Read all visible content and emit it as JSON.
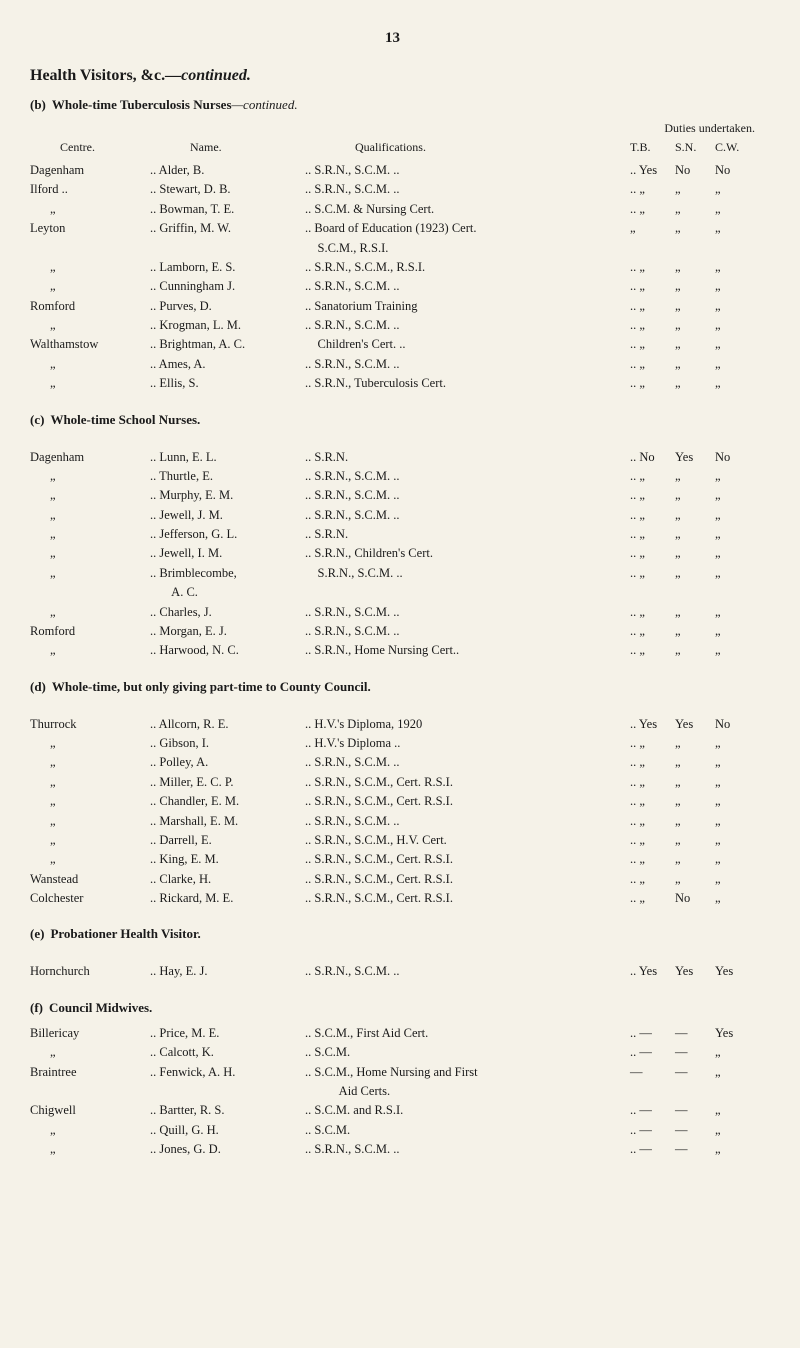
{
  "page_number": "13",
  "main_heading": "Health Visitors, &c.",
  "main_heading_suffix": "—continued.",
  "section_b": {
    "letter": "(b)",
    "title": "Whole-time Tuberculosis Nurses",
    "title_suffix": "—continued.",
    "legend": "Duties undertaken.",
    "headers": {
      "centre": "Centre.",
      "name": "Name.",
      "qual": "Qualifications.",
      "tb": "T.B.",
      "sn": "S.N.",
      "cw": "C.W."
    },
    "rows": [
      {
        "centre": "Dagenham",
        "name": ".. Alder, B.",
        "qual": ".. S.R.N., S.C.M. ..",
        "tb": ".. Yes",
        "sn": "No",
        "cw": "No"
      },
      {
        "centre": "Ilford ..",
        "name": ".. Stewart, D. B.",
        "qual": ".. S.R.N., S.C.M. ..",
        "tb": ".. „",
        "sn": "„",
        "cw": "„"
      },
      {
        "centre": "„",
        "name": ".. Bowman, T. E.",
        "qual": ".. S.C.M. & Nursing Cert.",
        "tb": ".. „",
        "sn": "„",
        "cw": "„"
      },
      {
        "centre": "Leyton",
        "name": ".. Griffin, M. W.",
        "qual": ".. Board of Education (1923) Cert.",
        "tb": "„",
        "sn": "„",
        "cw": "„"
      },
      {
        "centre": "",
        "name": "",
        "qual": "    S.C.M., R.S.I.",
        "tb": "",
        "sn": "",
        "cw": ""
      },
      {
        "centre": "„",
        "name": ".. Lamborn, E. S.",
        "qual": ".. S.R.N., S.C.M., R.S.I.",
        "tb": ".. „",
        "sn": "„",
        "cw": "„"
      },
      {
        "centre": "„",
        "name": ".. Cunningham J.",
        "qual": ".. S.R.N., S.C.M. ..",
        "tb": ".. „",
        "sn": "„",
        "cw": "„"
      },
      {
        "centre": "Romford",
        "name": ".. Purves, D.",
        "qual": ".. Sanatorium Training",
        "tb": ".. „",
        "sn": "„",
        "cw": "„"
      },
      {
        "centre": "„",
        "name": ".. Krogman, L. M.",
        "qual": ".. S.R.N., S.C.M. ..",
        "tb": ".. „",
        "sn": "„",
        "cw": "„"
      },
      {
        "centre": "Walthamstow",
        "name": ".. Brightman, A. C.",
        "qual": "    Children's Cert. ..",
        "tb": ".. „",
        "sn": "„",
        "cw": "„"
      },
      {
        "centre": "„",
        "name": ".. Ames, A.",
        "qual": ".. S.R.N., S.C.M. ..",
        "tb": ".. „",
        "sn": "„",
        "cw": "„"
      },
      {
        "centre": "„",
        "name": ".. Ellis, S.",
        "qual": ".. S.R.N., Tuberculosis Cert.",
        "tb": ".. „",
        "sn": "„",
        "cw": "„"
      }
    ]
  },
  "section_c": {
    "letter": "(c)",
    "title": "Whole-time School Nurses.",
    "rows": [
      {
        "centre": "Dagenham",
        "name": ".. Lunn, E. L.",
        "qual": ".. S.R.N.",
        "tb": ".. No",
        "sn": "Yes",
        "cw": "No"
      },
      {
        "centre": "„",
        "name": ".. Thurtle, E.",
        "qual": ".. S.R.N., S.C.M. ..",
        "tb": ".. „",
        "sn": "„",
        "cw": "„"
      },
      {
        "centre": "„",
        "name": ".. Murphy, E. M.",
        "qual": ".. S.R.N., S.C.M. ..",
        "tb": ".. „",
        "sn": "„",
        "cw": "„"
      },
      {
        "centre": "„",
        "name": ".. Jewell, J. M.",
        "qual": ".. S.R.N., S.C.M. ..",
        "tb": ".. „",
        "sn": "„",
        "cw": "„"
      },
      {
        "centre": "„",
        "name": ".. Jefferson, G. L.",
        "qual": ".. S.R.N.",
        "tb": ".. „",
        "sn": "„",
        "cw": "„"
      },
      {
        "centre": "„",
        "name": ".. Jewell, I. M.",
        "qual": ".. S.R.N., Children's Cert.",
        "tb": ".. „",
        "sn": "„",
        "cw": "„"
      },
      {
        "centre": "„",
        "name": ".. Brimblecombe,",
        "qual": "    S.R.N., S.C.M. ..",
        "tb": ".. „",
        "sn": "„",
        "cw": "„"
      },
      {
        "centre": "",
        "name": "       A. C.",
        "qual": "",
        "tb": "",
        "sn": "",
        "cw": ""
      },
      {
        "centre": "„",
        "name": ".. Charles, J.",
        "qual": ".. S.R.N., S.C.M. ..",
        "tb": ".. „",
        "sn": "„",
        "cw": "„"
      },
      {
        "centre": "Romford",
        "name": ".. Morgan, E. J.",
        "qual": ".. S.R.N., S.C.M. ..",
        "tb": ".. „",
        "sn": "„",
        "cw": "„"
      },
      {
        "centre": "„",
        "name": ".. Harwood, N. C.",
        "qual": ".. S.R.N., Home Nursing Cert..",
        "tb": ".. „",
        "sn": "„",
        "cw": "„"
      }
    ]
  },
  "section_d": {
    "letter": "(d)",
    "title": "Whole-time, but only giving part-time to County Council.",
    "rows": [
      {
        "centre": "Thurrock",
        "name": ".. Allcorn, R. E.",
        "qual": ".. H.V.'s Diploma, 1920",
        "tb": ".. Yes",
        "sn": "Yes",
        "cw": "No"
      },
      {
        "centre": "„",
        "name": ".. Gibson, I.",
        "qual": ".. H.V.'s Diploma ..",
        "tb": ".. „",
        "sn": "„",
        "cw": "„"
      },
      {
        "centre": "„",
        "name": ".. Polley, A.",
        "qual": ".. S.R.N., S.C.M. ..",
        "tb": ".. „",
        "sn": "„",
        "cw": "„"
      },
      {
        "centre": "„",
        "name": ".. Miller, E. C. P.",
        "qual": ".. S.R.N., S.C.M., Cert. R.S.I.",
        "tb": ".. „",
        "sn": "„",
        "cw": "„"
      },
      {
        "centre": "„",
        "name": ".. Chandler, E. M.",
        "qual": ".. S.R.N., S.C.M., Cert. R.S.I.",
        "tb": ".. „",
        "sn": "„",
        "cw": "„"
      },
      {
        "centre": "„",
        "name": ".. Marshall, E. M.",
        "qual": ".. S.R.N., S.C.M. ..",
        "tb": ".. „",
        "sn": "„",
        "cw": "„"
      },
      {
        "centre": "„",
        "name": ".. Darrell, E.",
        "qual": ".. S.R.N., S.C.M., H.V. Cert.",
        "tb": ".. „",
        "sn": "„",
        "cw": "„"
      },
      {
        "centre": "„",
        "name": ".. King, E. M.",
        "qual": ".. S.R.N., S.C.M., Cert. R.S.I.",
        "tb": ".. „",
        "sn": "„",
        "cw": "„"
      },
      {
        "centre": "Wanstead",
        "name": ".. Clarke, H.",
        "qual": ".. S.R.N., S.C.M., Cert. R.S.I.",
        "tb": ".. „",
        "sn": "„",
        "cw": "„"
      },
      {
        "centre": "Colchester",
        "name": ".. Rickard, M. E.",
        "qual": ".. S.R.N., S.C.M., Cert. R.S.I.",
        "tb": ".. „",
        "sn": "No",
        "cw": "„"
      }
    ]
  },
  "section_e": {
    "letter": "(e)",
    "title": "Probationer Health Visitor.",
    "rows": [
      {
        "centre": "Hornchurch",
        "name": ".. Hay, E. J.",
        "qual": ".. S.R.N., S.C.M. ..",
        "tb": ".. Yes",
        "sn": "Yes",
        "cw": "Yes"
      }
    ]
  },
  "section_f": {
    "letter": "(f)",
    "title": "Council Midwives.",
    "rows": [
      {
        "centre": "Billericay",
        "name": ".. Price, M. E.",
        "qual": ".. S.C.M., First Aid Cert.",
        "tb": ".. —",
        "sn": "—",
        "cw": "Yes"
      },
      {
        "centre": "„",
        "name": ".. Calcott, K.",
        "qual": ".. S.C.M.",
        "tb": ".. —",
        "sn": "—",
        "cw": "„"
      },
      {
        "centre": "Braintree",
        "name": ".. Fenwick, A. H.",
        "qual": ".. S.C.M., Home Nursing and First",
        "tb": "—",
        "sn": "—",
        "cw": "„"
      },
      {
        "centre": "",
        "name": "",
        "qual": "           Aid Certs.",
        "tb": "",
        "sn": "",
        "cw": ""
      },
      {
        "centre": "Chigwell",
        "name": ".. Bartter, R. S.",
        "qual": ".. S.C.M. and R.S.I.",
        "tb": ".. —",
        "sn": "—",
        "cw": "„"
      },
      {
        "centre": "„",
        "name": ".. Quill, G. H.",
        "qual": ".. S.C.M.",
        "tb": ".. —",
        "sn": "—",
        "cw": "„"
      },
      {
        "centre": "„",
        "name": ".. Jones, G. D.",
        "qual": ".. S.R.N., S.C.M. ..",
        "tb": ".. —",
        "sn": "—",
        "cw": "„"
      }
    ]
  }
}
